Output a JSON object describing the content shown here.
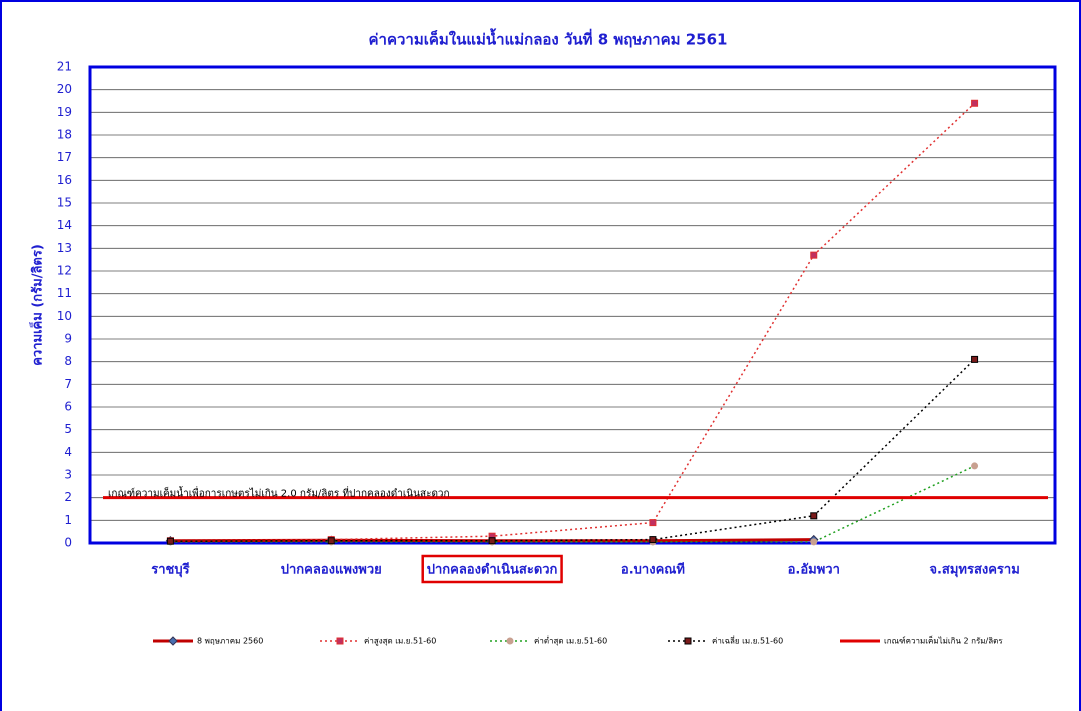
{
  "chart_data": {
    "type": "line",
    "title": "ค่าความเค็มในแม่น้ำแม่กลอง วันที่ 8  พฤษภาคม 2561",
    "y_label": "ความเค็ม (กรัม/ลิตร)",
    "annotation": "เกณฑ์ความเค็มน้ำเพื่อการเกษตรไม่เกิน 2.0 กรัม/ลิตร ที่ปากคลองดำเนินสะดวก",
    "categories": [
      "ราชบุรี",
      "ปากคลองแพงพวย",
      "ปากคลองดำเนินสะดวก",
      "อ.บางคณที",
      "อ.อัมพวา",
      "จ.สมุทรสงคราม"
    ],
    "highlight_category": 2,
    "series": [
      {
        "name": "8 พฤษภาคม 2560",
        "color": "#c00000",
        "marker": "diamond",
        "style": "solid",
        "values": [
          0.1,
          0.12,
          0.1,
          0.1,
          0.15,
          null
        ]
      },
      {
        "name": "ค่าสูงสุด เม.ย.51-60",
        "color": "#e03030",
        "marker": "square",
        "style": "dotted",
        "values": [
          0.1,
          0.15,
          0.3,
          0.9,
          12.7,
          19.4
        ]
      },
      {
        "name": "ค่าต่ำสุด เม.ย.51-60",
        "color": "#20a020",
        "marker": "circle",
        "style": "dotted",
        "values": [
          0.05,
          0.05,
          0.05,
          0.05,
          0.05,
          3.4
        ]
      },
      {
        "name": "ค่าเฉลี่ย เม.ย.51-60",
        "color": "#000000",
        "marker": "square",
        "style": "dotted",
        "values": [
          0.08,
          0.1,
          0.1,
          0.15,
          1.2,
          8.1
        ]
      },
      {
        "name": "เกณฑ์ความเค็มไม่เกิน 2 กรัม/ลิตร",
        "color": "#e00000",
        "marker": "none",
        "style": "thick",
        "values": [
          2,
          2,
          2,
          2,
          2,
          2
        ]
      }
    ],
    "ylim": [
      0,
      21
    ],
    "yticks": [
      0,
      1,
      2,
      3,
      4,
      5,
      6,
      7,
      8,
      9,
      10,
      11,
      12,
      13,
      14,
      15,
      16,
      17,
      18,
      19,
      20,
      21
    ],
    "grid": true
  }
}
